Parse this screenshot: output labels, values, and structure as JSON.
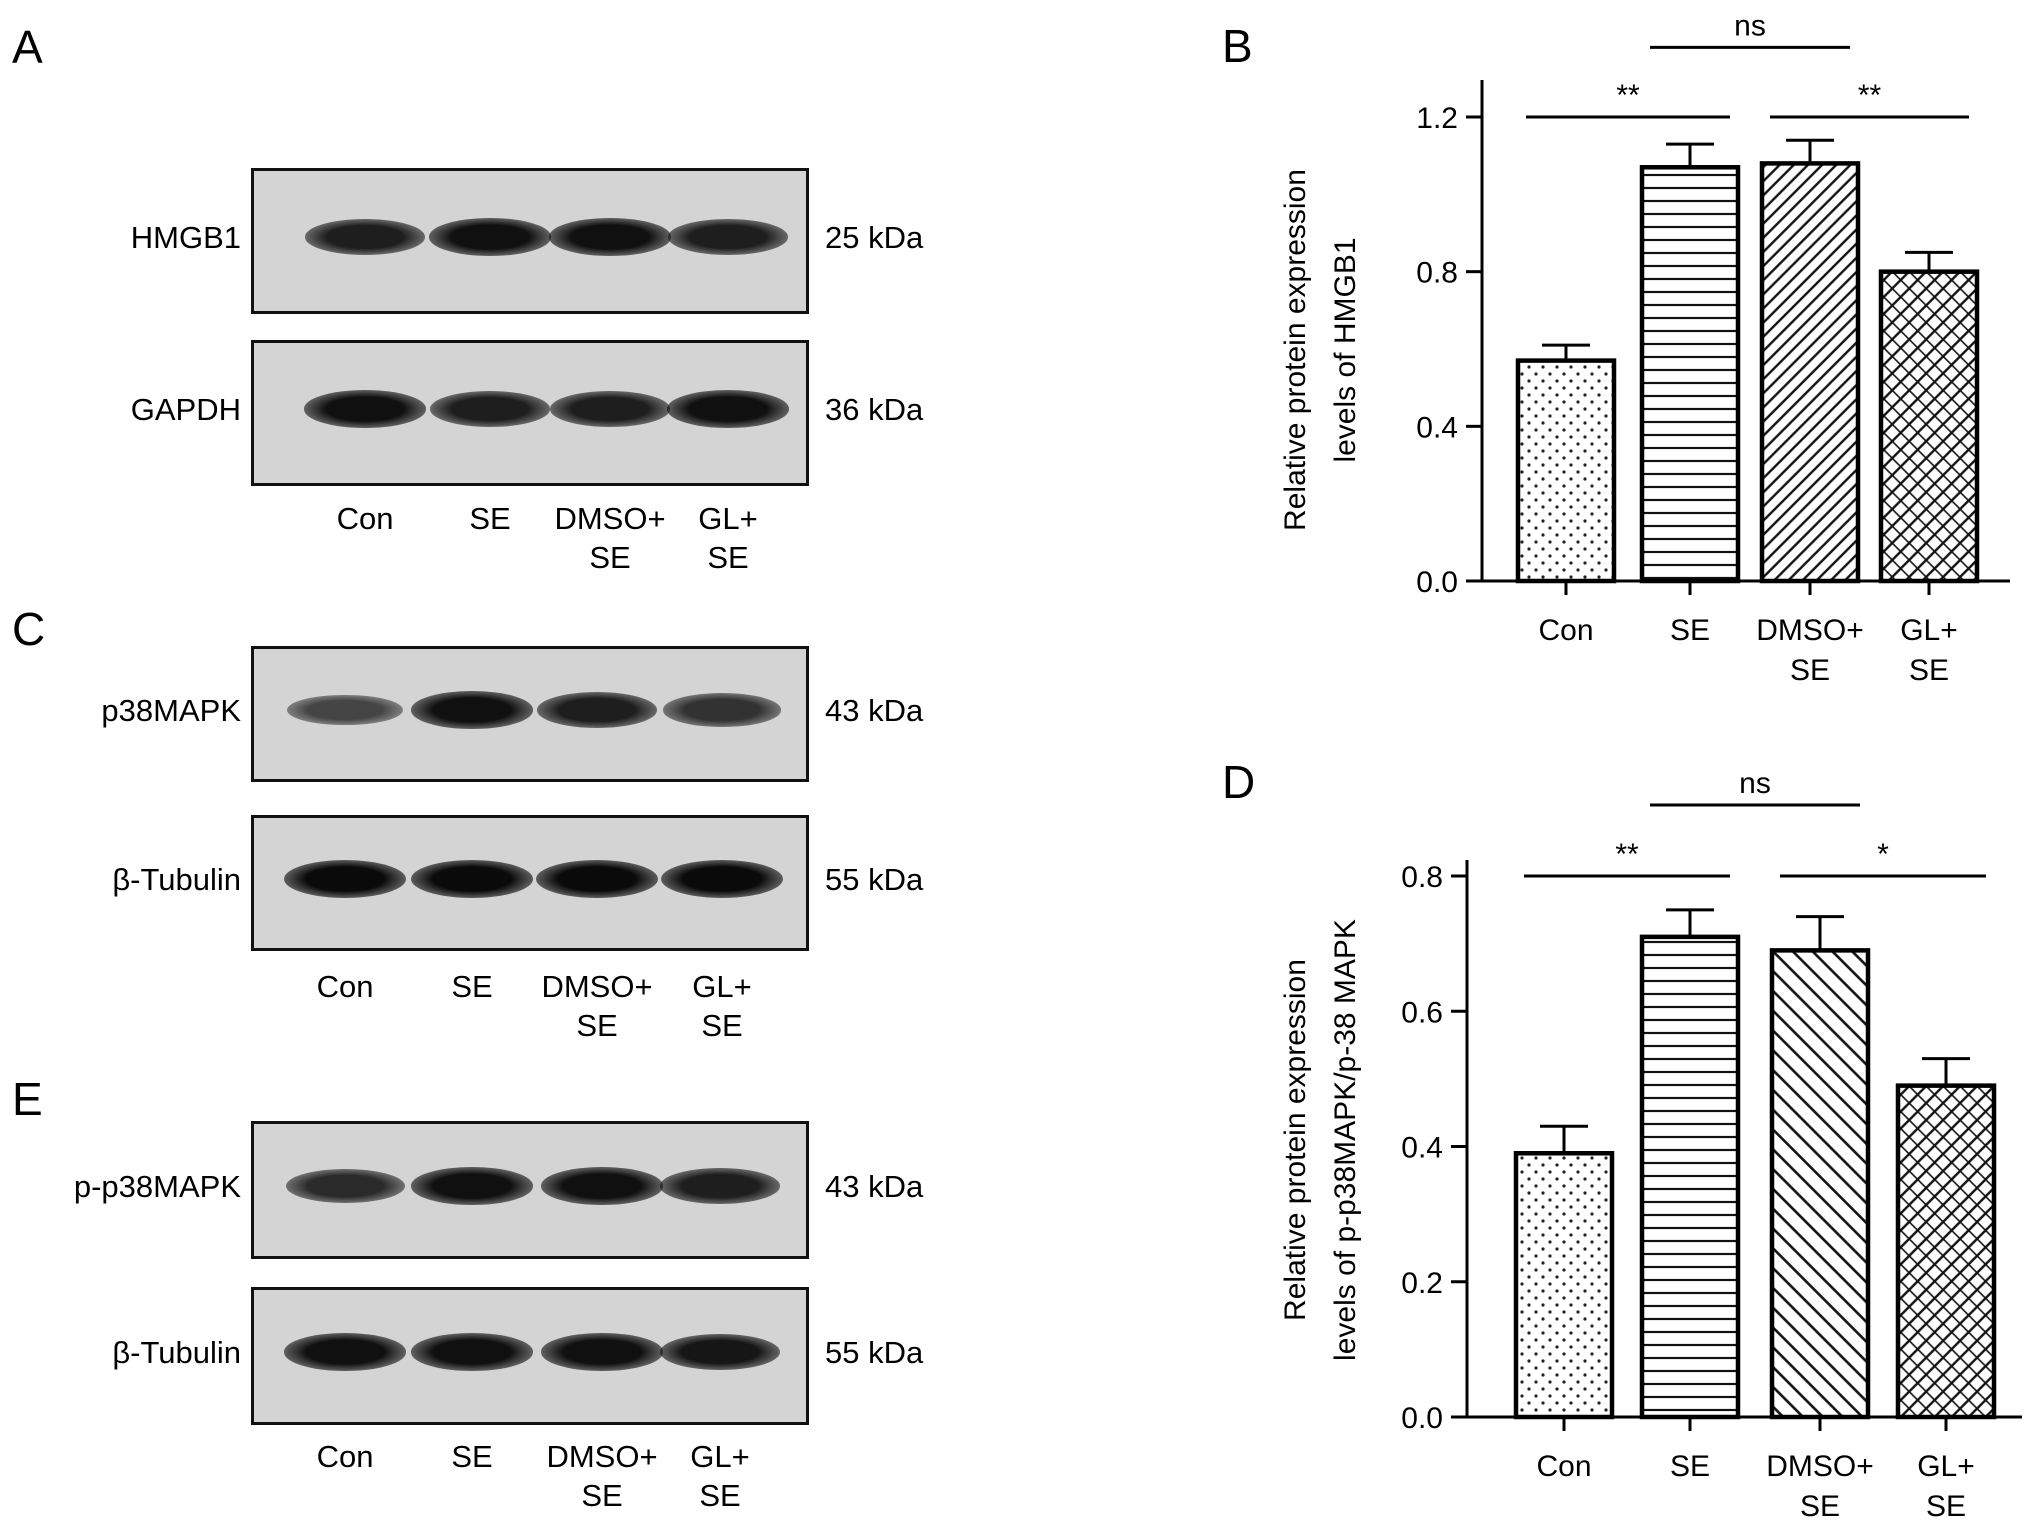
{
  "panels": {
    "A": {
      "letter": "A",
      "blots": [
        {
          "protein": "HMGB1",
          "kda": "25 kDa",
          "intensity": [
            0.85,
            0.95,
            0.95,
            0.85
          ]
        },
        {
          "protein": "GAPDH",
          "kda": "36 kDa",
          "intensity": [
            0.95,
            0.85,
            0.85,
            0.95
          ]
        }
      ],
      "lanes": [
        "Con",
        "SE",
        "DMSO+\nSE",
        "GL+\nSE"
      ]
    },
    "C": {
      "letter": "C",
      "blots": [
        {
          "protein": "p38MAPK",
          "kda": "43 kDa",
          "intensity": [
            0.55,
            0.95,
            0.85,
            0.7
          ]
        },
        {
          "protein": "β-Tubulin",
          "kda": "55 kDa",
          "intensity": [
            1.0,
            1.0,
            1.0,
            1.0
          ]
        }
      ],
      "lanes": [
        "Con",
        "SE",
        "DMSO+\nSE",
        "GL+\nSE"
      ]
    },
    "E": {
      "letter": "E",
      "blots": [
        {
          "protein": "p-p38MAPK",
          "kda": "43 kDa",
          "intensity": [
            0.75,
            0.95,
            0.95,
            0.85
          ]
        },
        {
          "protein": "β-Tubulin",
          "kda": "55 kDa",
          "intensity": [
            0.95,
            0.95,
            0.95,
            0.9
          ]
        }
      ],
      "lanes": [
        "Con",
        "SE",
        "DMSO+\nSE",
        "GL+\nSE"
      ]
    }
  },
  "chart_data": [
    {
      "panel": "B",
      "type": "bar",
      "title": "",
      "xlabel": "",
      "ylabel": [
        "Relative protein expression",
        "levels of HMGB1"
      ],
      "categories": [
        "Con",
        "SE",
        "DMSO+\nSE",
        "GL+\nSE"
      ],
      "values": [
        0.57,
        1.07,
        1.08,
        0.8
      ],
      "errors": [
        0.04,
        0.06,
        0.06,
        0.05
      ],
      "ylim": [
        0,
        1.3
      ],
      "yticks": [
        0.0,
        0.4,
        0.8,
        1.2
      ],
      "ytick_labels": [
        "0.0",
        "0.4",
        "0.8",
        "1.2"
      ],
      "patterns": [
        "dots",
        "horizontal",
        "diagonal-dense",
        "crosshatch"
      ],
      "significance": [
        {
          "from": 0,
          "to": 1,
          "label": "**",
          "level": 1.2
        },
        {
          "from": 1,
          "to": 2,
          "label": "ns",
          "level": 1.38
        },
        {
          "from": 2,
          "to": 3,
          "label": "**",
          "level": 1.2
        }
      ]
    },
    {
      "panel": "D",
      "type": "bar",
      "title": "",
      "xlabel": "",
      "ylabel": [
        "Relative protein expression",
        "levels of p-p38MAPK/p-38 MAPK"
      ],
      "categories": [
        "Con",
        "SE",
        "DMSO+\nSE",
        "GL+\nSE"
      ],
      "values": [
        0.39,
        0.71,
        0.69,
        0.49
      ],
      "errors": [
        0.04,
        0.04,
        0.05,
        0.04
      ],
      "ylim": [
        0,
        0.8
      ],
      "yticks": [
        0.0,
        0.2,
        0.4,
        0.6,
        0.8
      ],
      "ytick_labels": [
        "0.0",
        "0.2",
        "0.4",
        "0.6",
        "0.8"
      ],
      "patterns": [
        "dots",
        "horizontal",
        "diagonal",
        "crosshatch"
      ],
      "significance": [
        {
          "from": 0,
          "to": 1,
          "label": "**",
          "level": 0.8
        },
        {
          "from": 1,
          "to": 2,
          "label": "ns",
          "level": 0.905
        },
        {
          "from": 2,
          "to": 3,
          "label": "*",
          "level": 0.8
        }
      ]
    }
  ]
}
